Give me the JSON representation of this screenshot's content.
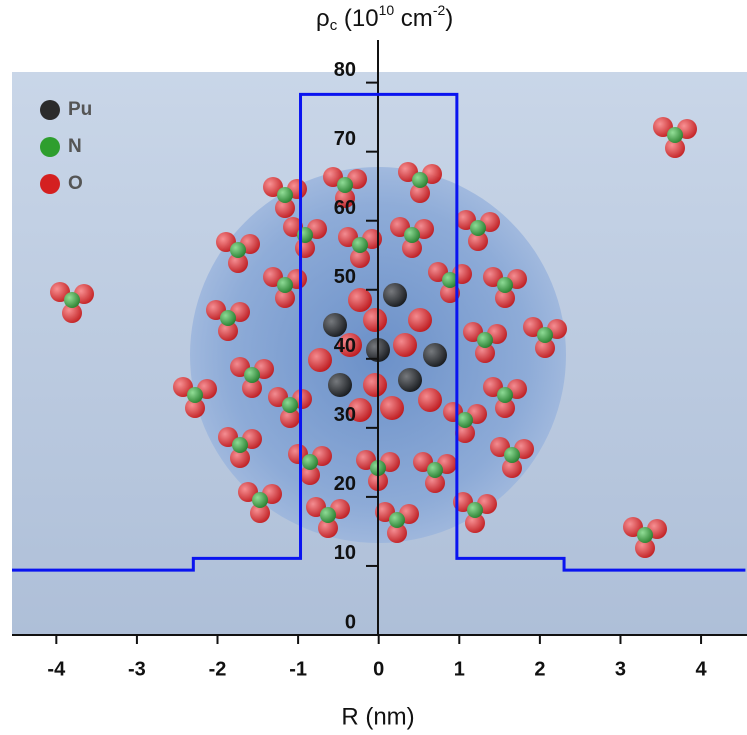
{
  "chart_data": {
    "type": "line",
    "ylabel_parts": [
      "ρ",
      "c",
      " (10",
      "10",
      " cm",
      "-2",
      ")"
    ],
    "xlabel": "R (nm)",
    "x": [
      -4.55,
      -2.3,
      -2.3,
      -0.97,
      -0.97,
      0.97,
      0.97,
      2.3,
      2.3,
      4.55
    ],
    "values": [
      9.4,
      9.4,
      11.1,
      11.1,
      78.3,
      78.3,
      11.1,
      11.1,
      9.4,
      9.4
    ],
    "color": "#0a14f0",
    "xlim": [
      -4.55,
      4.57
    ],
    "ylim": [
      0,
      84
    ],
    "xticks": [
      -4,
      -3,
      -2,
      -1,
      0,
      1,
      2,
      3,
      4
    ],
    "yticks": [
      0,
      10,
      20,
      30,
      40,
      50,
      60,
      70,
      80
    ],
    "legend": [
      {
        "name": "Pu",
        "color": "#2b2b2b"
      },
      {
        "name": "N",
        "color": "#2e9e2e"
      },
      {
        "name": "O",
        "color": "#d42020"
      }
    ]
  }
}
